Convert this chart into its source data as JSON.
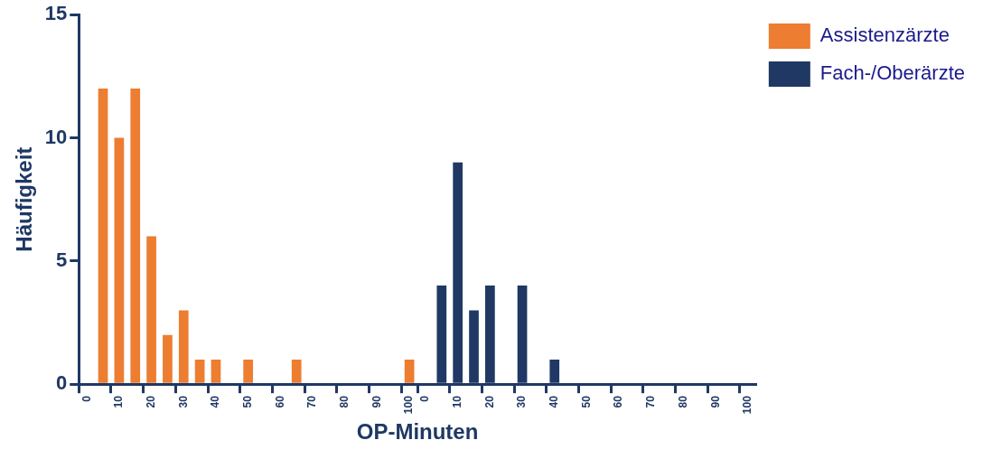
{
  "chart_data": {
    "type": "bar",
    "xlabel": "OP-Minuten",
    "ylabel": "Häufigkeit",
    "categories": [
      "0",
      null,
      "10",
      null,
      "20",
      null,
      "30",
      null,
      "40",
      null,
      "50",
      null,
      "60",
      null,
      "70",
      null,
      "80",
      null,
      "90",
      null,
      "100",
      "0",
      null,
      "10",
      null,
      "20",
      null,
      "30",
      null,
      "40",
      null,
      "50",
      null,
      "60",
      null,
      "70",
      null,
      "80",
      null,
      "90",
      null,
      "100"
    ],
    "series": [
      {
        "name": "Assistenzärzte",
        "color": "#ed7d31",
        "values": [
          0,
          12,
          10,
          12,
          6,
          2,
          3,
          1,
          1,
          0,
          1,
          0,
          0,
          1,
          0,
          0,
          0,
          0,
          0,
          0,
          1,
          null,
          null,
          null,
          null,
          null,
          null,
          null,
          null,
          null,
          null,
          null,
          null,
          null,
          null,
          null,
          null,
          null,
          null,
          null,
          null,
          null
        ]
      },
      {
        "name": "Fach-/Oberärzte",
        "color": "#203864",
        "values": [
          null,
          null,
          null,
          null,
          null,
          null,
          null,
          null,
          null,
          null,
          null,
          null,
          null,
          null,
          null,
          null,
          null,
          null,
          null,
          null,
          null,
          0,
          4,
          9,
          3,
          4,
          0,
          4,
          0,
          1,
          0,
          0,
          0,
          0,
          0,
          0,
          0,
          0,
          0,
          0,
          0,
          0
        ]
      }
    ],
    "ylim": [
      0,
      15
    ],
    "yticks": [
      0,
      5,
      10,
      15
    ],
    "grid": false,
    "legend": "top right"
  }
}
